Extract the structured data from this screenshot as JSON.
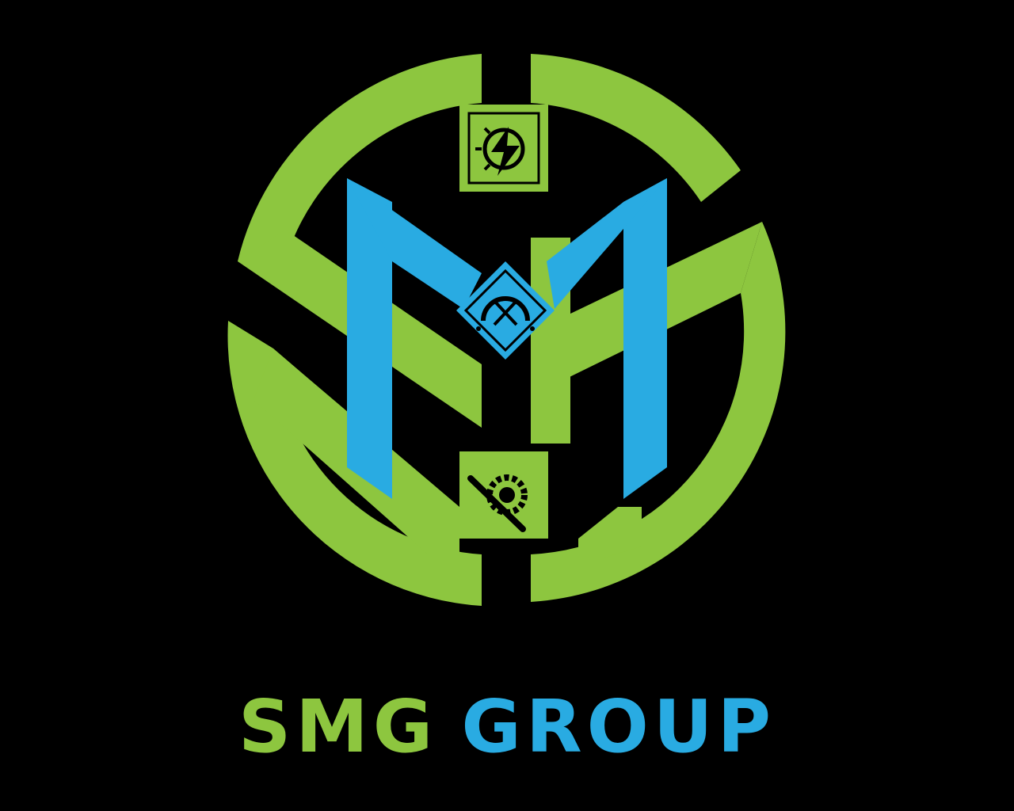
{
  "brand": {
    "word1": "SMG",
    "word2": "GROUP"
  },
  "colors": {
    "background": "#000000",
    "green": "#8DC63F",
    "blue": "#29ABE2"
  },
  "emblem": {
    "icons": [
      "electric-power-icon",
      "plumbing-tools-icon",
      "mechanical-gear-wrench-icon"
    ]
  }
}
